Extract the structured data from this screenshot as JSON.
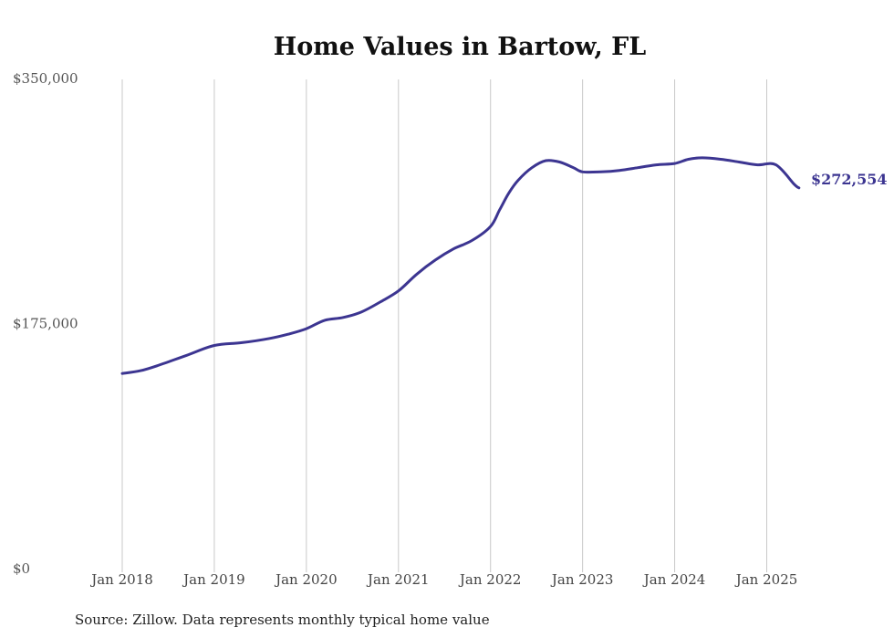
{
  "chart_data": {
    "type": "line",
    "title": "Home Values in Bartow, FL",
    "xlabel": "",
    "ylabel": "",
    "ylim": [
      0,
      350000
    ],
    "y_ticks": [
      "$350,000",
      "$175,000",
      "$0"
    ],
    "y_tick_values": [
      350000,
      175000,
      0
    ],
    "x_ticks": [
      "Jan 2018",
      "Jan 2019",
      "Jan 2020",
      "Jan 2021",
      "Jan 2022",
      "Jan 2023",
      "Jan 2024",
      "Jan 2025"
    ],
    "x_tick_values": [
      2018,
      2019,
      2020,
      2021,
      2022,
      2023,
      2024,
      2025
    ],
    "xlim": [
      2018,
      2025.4
    ],
    "grid": "vertical",
    "series": [
      {
        "color": "#3c3591",
        "x": [
          2018.0,
          2018.2,
          2018.4,
          2018.7,
          2019.0,
          2019.3,
          2019.6,
          2019.8,
          2020.0,
          2020.2,
          2020.4,
          2020.6,
          2020.8,
          2021.0,
          2021.2,
          2021.4,
          2021.6,
          2021.8,
          2022.0,
          2022.1,
          2022.2,
          2022.3,
          2022.45,
          2022.6,
          2022.75,
          2022.9,
          2023.0,
          2023.2,
          2023.4,
          2023.6,
          2023.8,
          2024.0,
          2024.15,
          2024.3,
          2024.5,
          2024.7,
          2024.9,
          2025.1,
          2025.3,
          2025.35
        ],
        "y": [
          140000,
          142000,
          146000,
          153000,
          160000,
          162000,
          165000,
          168000,
          172000,
          178000,
          180000,
          184000,
          191000,
          199000,
          211000,
          221000,
          229000,
          235000,
          245000,
          257000,
          269000,
          278000,
          287000,
          292000,
          291000,
          287000,
          284000,
          284000,
          285000,
          287000,
          289000,
          290000,
          293000,
          294000,
          293000,
          291000,
          289000,
          289000,
          275000,
          272554
        ]
      }
    ],
    "end_label": "$272,554",
    "source": "Source: Zillow. Data represents monthly typical home value"
  }
}
